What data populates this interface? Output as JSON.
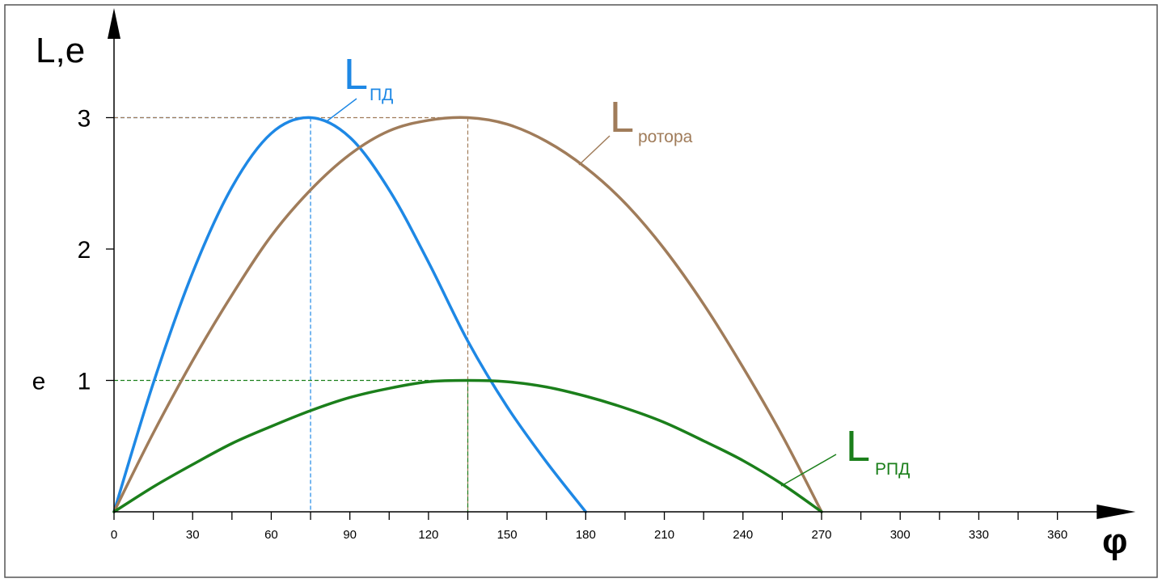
{
  "chart_data": {
    "type": "line",
    "axis_labels": {
      "y": "L,e",
      "x": "φ"
    },
    "xlim": [
      0,
      375
    ],
    "ylim": [
      0,
      3.6
    ],
    "x_ticks_major": [
      0,
      30,
      60,
      90,
      120,
      150,
      180,
      210,
      240,
      270,
      300,
      330,
      360
    ],
    "x_tick_labels": [
      "0",
      "30",
      "60",
      "90",
      "120",
      "150",
      "180",
      "210",
      "240",
      "270",
      "300",
      "330",
      "360"
    ],
    "x_minor_step": 15,
    "y_ticks": [
      1,
      2,
      3
    ],
    "y_tick_labels": [
      "1",
      "2",
      "3"
    ],
    "y_marker": {
      "label": "e",
      "value": 1
    },
    "grid": false,
    "series": [
      {
        "key": "pd",
        "name_main": "L",
        "name_sub": "ПД",
        "color": "#1e88e5",
        "x": [
          0,
          15,
          30,
          45,
          60,
          75,
          90,
          105,
          120,
          135,
          150,
          165,
          180
        ],
        "y": [
          0,
          0.98,
          1.82,
          2.47,
          2.88,
          3.0,
          2.85,
          2.45,
          1.9,
          1.3,
          0.8,
          0.38,
          0
        ],
        "peak": {
          "x": 75,
          "y": 3
        }
      },
      {
        "key": "rotor",
        "name_main": "L",
        "name_sub": "ротора",
        "color": "#a07c5a",
        "x": [
          0,
          15,
          30,
          45,
          60,
          75,
          90,
          105,
          120,
          135,
          150,
          165,
          180,
          195,
          210,
          225,
          240,
          255,
          270
        ],
        "y": [
          0,
          0.6,
          1.15,
          1.65,
          2.1,
          2.45,
          2.72,
          2.9,
          2.98,
          3.0,
          2.95,
          2.82,
          2.62,
          2.35,
          2.0,
          1.58,
          1.1,
          0.58,
          0
        ],
        "peak": {
          "x": 135,
          "y": 3
        }
      },
      {
        "key": "rpd",
        "name_main": "L",
        "name_sub": "РПД",
        "color": "#1b7f1b",
        "x": [
          0,
          15,
          30,
          45,
          60,
          75,
          90,
          105,
          120,
          135,
          150,
          165,
          180,
          195,
          210,
          225,
          240,
          255,
          270
        ],
        "y": [
          0,
          0.19,
          0.36,
          0.52,
          0.65,
          0.77,
          0.87,
          0.94,
          0.99,
          1.0,
          0.99,
          0.95,
          0.88,
          0.79,
          0.68,
          0.54,
          0.39,
          0.21,
          0
        ],
        "peak": {
          "x": 135,
          "y": 1
        }
      }
    ]
  }
}
